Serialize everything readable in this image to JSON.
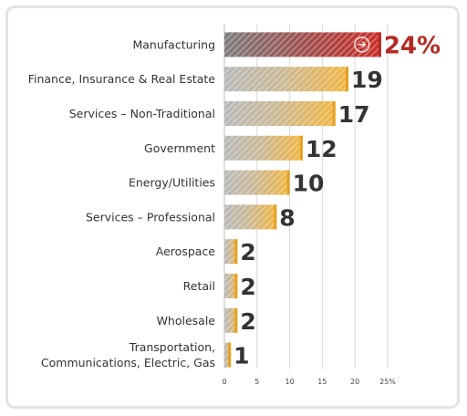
{
  "chart_data": {
    "type": "bar",
    "orientation": "horizontal",
    "categories": [
      "Manufacturing",
      "Finance, Insurance & Real Estate",
      "Services – Non-Traditional",
      "Government",
      "Energy/Utilities",
      "Services – Professional",
      "Aerospace",
      "Retail",
      "Wholesale",
      "Transportation, Communications, Electric, Gas"
    ],
    "category_lines": [
      [
        "Manufacturing"
      ],
      [
        "Finance, Insurance & Real Estate"
      ],
      [
        "Services – Non-Traditional"
      ],
      [
        "Government"
      ],
      [
        "Energy/Utilities"
      ],
      [
        "Services – Professional"
      ],
      [
        "Aerospace"
      ],
      [
        "Retail"
      ],
      [
        "Wholesale"
      ],
      [
        "Transportation,",
        "Communications, Electric, Gas"
      ]
    ],
    "values": [
      24,
      19,
      17,
      12,
      10,
      8,
      2,
      2,
      2,
      1
    ],
    "value_labels": [
      "24%",
      "19",
      "17",
      "12",
      "10",
      "8",
      "2",
      "2",
      "2",
      "1"
    ],
    "highlight_index": 0,
    "xlim": [
      0,
      25
    ],
    "xticks": [
      0,
      5,
      10,
      15,
      20,
      25
    ],
    "xtick_labels": [
      "0",
      "5",
      "10",
      "15",
      "20",
      "25%"
    ],
    "grid": "vertical",
    "title": "",
    "xlabel": "",
    "ylabel": "",
    "colors": {
      "bar_start": "#b8b8b8",
      "bar_end": "#f2b53d",
      "bar_edge": "#e3a127",
      "highlight_start": "#7b7b7b",
      "highlight_end": "#cc2a24",
      "highlight_edge": "#b42a24",
      "highlight_text": "#b42a24",
      "value_text": "#333333",
      "grid": "#d9d9d9"
    },
    "highlight_marker": "arrow-right-circle-icon"
  }
}
